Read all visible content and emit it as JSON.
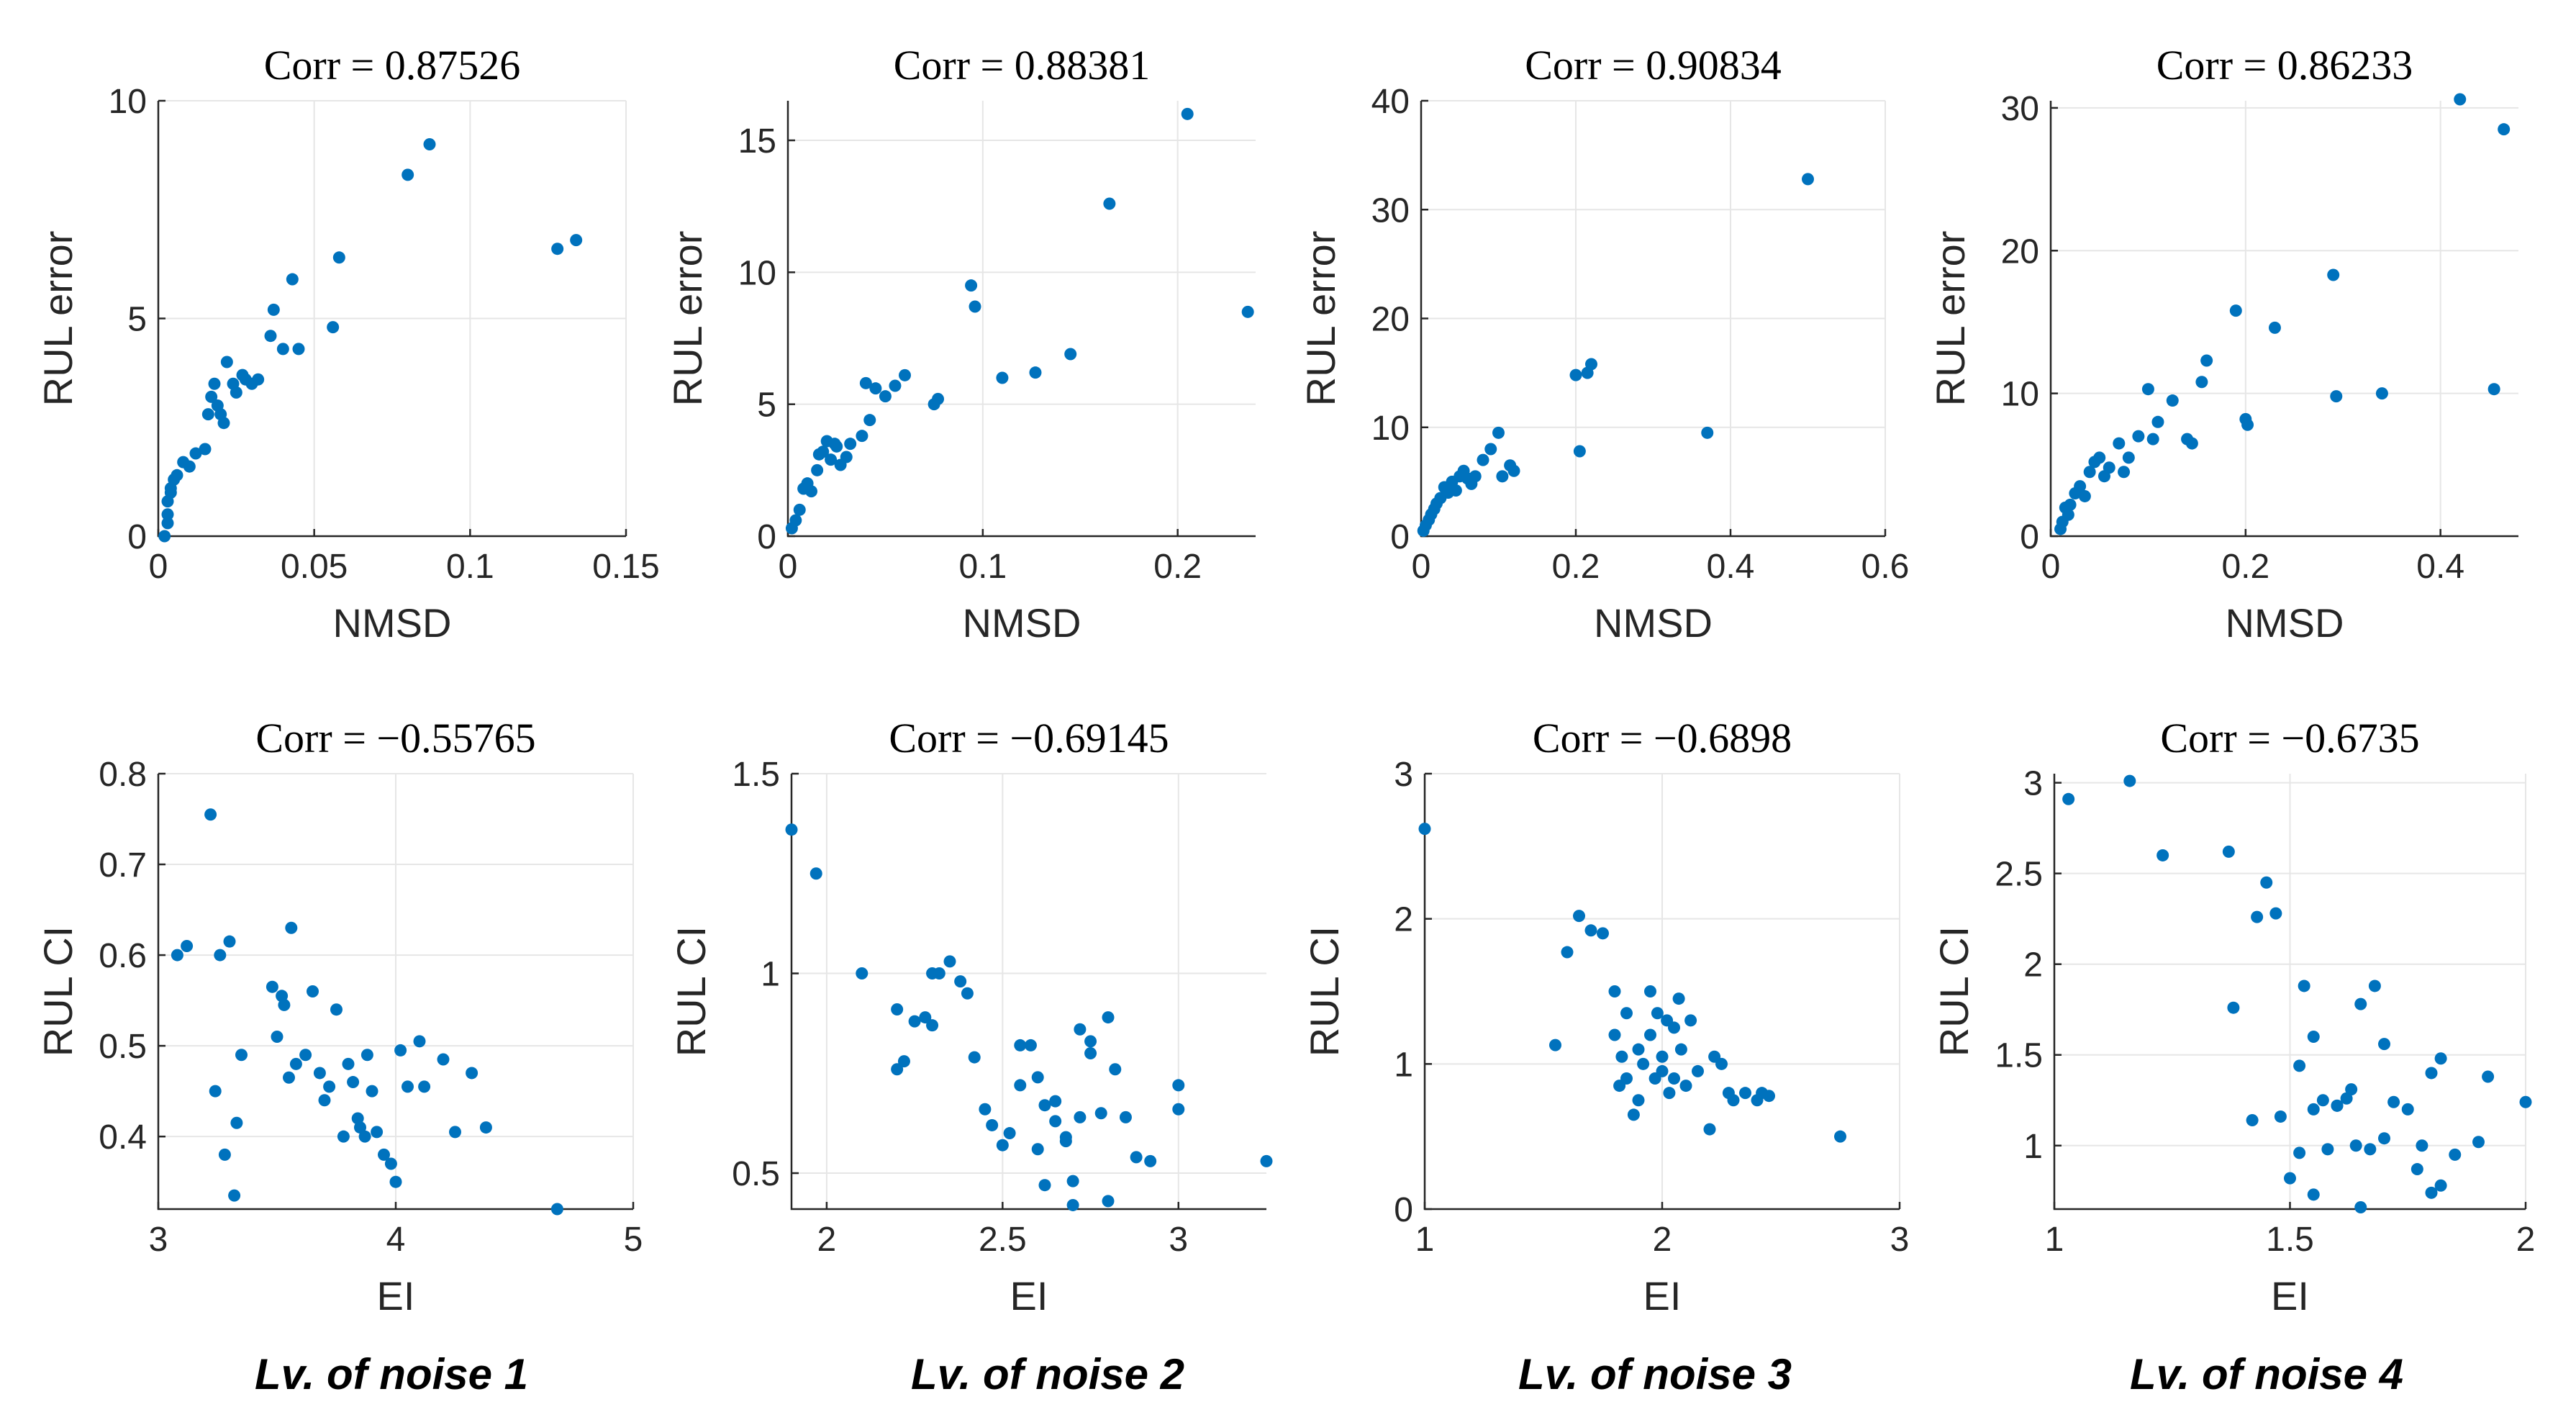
{
  "colors": {
    "marker": "#0072BD",
    "grid": "#e6e6e6",
    "axis": "#262626"
  },
  "captions": [
    "Lv. of noise 1",
    "Lv. of noise 2",
    "Lv. of noise 3",
    "Lv. of noise 4"
  ],
  "chart_data": [
    {
      "type": "scatter",
      "title": "Corr = 0.87526",
      "xlabel": "NMSD",
      "ylabel": "RUL error",
      "xlim": [
        0,
        0.15
      ],
      "ylim": [
        0,
        10
      ],
      "grid": true,
      "xticks": [
        0,
        0.05,
        0.1,
        0.15
      ],
      "xtick_labels": [
        "0",
        "0.05",
        "0.1",
        "0.15"
      ],
      "yticks": [
        0,
        5,
        10
      ],
      "ytick_labels": [
        "0",
        "5",
        "10"
      ],
      "x": [
        0.002,
        0.003,
        0.003,
        0.003,
        0.004,
        0.004,
        0.005,
        0.006,
        0.008,
        0.01,
        0.012,
        0.015,
        0.016,
        0.017,
        0.018,
        0.019,
        0.02,
        0.021,
        0.022,
        0.024,
        0.025,
        0.027,
        0.028,
        0.03,
        0.032,
        0.036,
        0.037,
        0.04,
        0.043,
        0.045,
        0.056,
        0.058,
        0.08,
        0.087,
        0.128,
        0.134
      ],
      "y": [
        0.0,
        0.3,
        0.5,
        0.8,
        1.0,
        1.1,
        1.3,
        1.4,
        1.7,
        1.6,
        1.9,
        2.0,
        2.8,
        3.2,
        3.5,
        3.0,
        2.8,
        2.6,
        4.0,
        3.5,
        3.3,
        3.7,
        3.6,
        3.5,
        3.6,
        4.6,
        5.2,
        4.3,
        5.9,
        4.3,
        4.8,
        6.4,
        8.3,
        9.0,
        6.6,
        6.8
      ]
    },
    {
      "type": "scatter",
      "title": "Corr = 0.88381",
      "xlabel": "NMSD",
      "ylabel": "RUL error",
      "xlim": [
        0,
        0.24
      ],
      "ylim": [
        0,
        16.5
      ],
      "grid": true,
      "xticks": [
        0,
        0.1,
        0.2
      ],
      "xtick_labels": [
        "0",
        "0.1",
        "0.2"
      ],
      "yticks": [
        0,
        5,
        10,
        15
      ],
      "ytick_labels": [
        "0",
        "5",
        "10",
        "15"
      ],
      "x": [
        0.002,
        0.004,
        0.006,
        0.008,
        0.01,
        0.012,
        0.015,
        0.016,
        0.018,
        0.02,
        0.022,
        0.024,
        0.025,
        0.027,
        0.03,
        0.032,
        0.038,
        0.04,
        0.042,
        0.045,
        0.05,
        0.055,
        0.06,
        0.075,
        0.077,
        0.094,
        0.096,
        0.11,
        0.127,
        0.145,
        0.165,
        0.205,
        0.236
      ],
      "y": [
        0.3,
        0.6,
        1.0,
        1.8,
        2.0,
        1.7,
        2.5,
        3.1,
        3.2,
        3.6,
        2.9,
        3.5,
        3.4,
        2.7,
        3.0,
        3.5,
        3.8,
        5.8,
        4.4,
        5.6,
        5.3,
        5.7,
        6.1,
        5.0,
        5.2,
        9.5,
        8.7,
        6.0,
        6.2,
        6.9,
        12.6,
        16.0,
        8.5
      ]
    },
    {
      "type": "scatter",
      "title": "Corr = 0.90834",
      "xlabel": "NMSD",
      "ylabel": "RUL error",
      "xlim": [
        0,
        0.6
      ],
      "ylim": [
        0,
        40
      ],
      "grid": true,
      "xticks": [
        0,
        0.2,
        0.4,
        0.6
      ],
      "xtick_labels": [
        "0",
        "0.2",
        "0.4",
        "0.6"
      ],
      "yticks": [
        0,
        10,
        20,
        30,
        40
      ],
      "ytick_labels": [
        "0",
        "10",
        "20",
        "30",
        "40"
      ],
      "x": [
        0.003,
        0.006,
        0.01,
        0.013,
        0.017,
        0.02,
        0.025,
        0.03,
        0.035,
        0.04,
        0.045,
        0.05,
        0.055,
        0.06,
        0.065,
        0.07,
        0.08,
        0.09,
        0.1,
        0.105,
        0.115,
        0.12,
        0.2,
        0.205,
        0.215,
        0.22,
        0.37,
        0.5
      ],
      "y": [
        0.5,
        1.0,
        1.5,
        2.0,
        2.5,
        3.0,
        3.5,
        4.5,
        4.0,
        5.0,
        4.2,
        5.5,
        6.0,
        5.3,
        4.8,
        5.5,
        7.0,
        8.0,
        9.5,
        5.5,
        6.5,
        6.0,
        14.8,
        7.8,
        15.0,
        15.8,
        9.5,
        32.8
      ]
    },
    {
      "type": "scatter",
      "title": "Corr = 0.86233",
      "xlabel": "NMSD",
      "ylabel": "RUL error",
      "xlim": [
        0,
        0.48
      ],
      "ylim": [
        0,
        30.5
      ],
      "grid": true,
      "xticks": [
        0,
        0.2,
        0.4
      ],
      "xtick_labels": [
        "0",
        "0.2",
        "0.4"
      ],
      "yticks": [
        0,
        10,
        20,
        30
      ],
      "ytick_labels": [
        "0",
        "10",
        "20",
        "30"
      ],
      "x": [
        0.01,
        0.012,
        0.015,
        0.018,
        0.02,
        0.025,
        0.03,
        0.035,
        0.04,
        0.045,
        0.05,
        0.055,
        0.06,
        0.07,
        0.075,
        0.08,
        0.09,
        0.1,
        0.105,
        0.11,
        0.125,
        0.14,
        0.145,
        0.155,
        0.16,
        0.19,
        0.2,
        0.202,
        0.23,
        0.29,
        0.293,
        0.34,
        0.42,
        0.455,
        0.465
      ],
      "y": [
        0.5,
        1.0,
        2.0,
        1.5,
        2.2,
        3.0,
        3.5,
        2.8,
        4.5,
        5.2,
        5.5,
        4.2,
        4.8,
        6.5,
        4.5,
        5.5,
        7.0,
        10.3,
        6.8,
        8.0,
        9.5,
        6.8,
        6.5,
        10.8,
        12.3,
        15.8,
        8.2,
        7.8,
        14.6,
        18.3,
        9.8,
        10.0,
        30.6,
        10.3,
        28.5
      ]
    },
    {
      "type": "scatter",
      "title": "Corr = −0.55765",
      "xlabel": "EI",
      "ylabel": "RUL CI",
      "xlim": [
        3,
        5
      ],
      "ylim": [
        0.32,
        0.8
      ],
      "grid": true,
      "xticks": [
        3,
        4,
        5
      ],
      "xtick_labels": [
        "3",
        "4",
        "5"
      ],
      "yticks": [
        0.4,
        0.5,
        0.6,
        0.7,
        0.8
      ],
      "ytick_labels": [
        "0.4",
        "0.5",
        "0.6",
        "0.7",
        "0.8"
      ],
      "x": [
        3.08,
        3.12,
        3.22,
        3.24,
        3.26,
        3.28,
        3.3,
        3.32,
        3.33,
        3.35,
        3.48,
        3.5,
        3.52,
        3.53,
        3.55,
        3.56,
        3.58,
        3.62,
        3.65,
        3.68,
        3.7,
        3.72,
        3.75,
        3.78,
        3.8,
        3.82,
        3.84,
        3.85,
        3.87,
        3.88,
        3.9,
        3.92,
        3.95,
        3.98,
        4.0,
        4.02,
        4.05,
        4.1,
        4.12,
        4.2,
        4.25,
        4.32,
        4.38,
        4.68
      ],
      "y": [
        0.6,
        0.61,
        0.755,
        0.45,
        0.6,
        0.38,
        0.615,
        0.335,
        0.415,
        0.49,
        0.565,
        0.51,
        0.555,
        0.545,
        0.465,
        0.63,
        0.48,
        0.49,
        0.56,
        0.47,
        0.44,
        0.455,
        0.54,
        0.4,
        0.48,
        0.46,
        0.42,
        0.41,
        0.4,
        0.49,
        0.45,
        0.405,
        0.38,
        0.37,
        0.35,
        0.495,
        0.455,
        0.505,
        0.455,
        0.485,
        0.405,
        0.47,
        0.41,
        0.32
      ]
    },
    {
      "type": "scatter",
      "title": "Corr = −0.69145",
      "xlabel": "EI",
      "ylabel": "RUL CI",
      "xlim": [
        1.9,
        3.25
      ],
      "ylim": [
        0.41,
        1.5
      ],
      "grid": true,
      "xticks": [
        2,
        2.5,
        3
      ],
      "xtick_labels": [
        "2",
        "2.5",
        "3"
      ],
      "yticks": [
        0.5,
        1,
        1.5
      ],
      "ytick_labels": [
        "0.5",
        "1",
        "1.5"
      ],
      "x": [
        1.9,
        1.97,
        2.1,
        2.2,
        2.2,
        2.22,
        2.25,
        2.28,
        2.3,
        2.3,
        2.32,
        2.35,
        2.38,
        2.4,
        2.42,
        2.45,
        2.47,
        2.5,
        2.52,
        2.55,
        2.55,
        2.58,
        2.6,
        2.6,
        2.62,
        2.62,
        2.65,
        2.65,
        2.68,
        2.68,
        2.7,
        2.7,
        2.72,
        2.72,
        2.75,
        2.75,
        2.78,
        2.8,
        2.8,
        2.82,
        2.85,
        2.88,
        2.92,
        3.0,
        3.0,
        3.25
      ],
      "y": [
        1.36,
        1.25,
        1.0,
        0.91,
        0.76,
        0.78,
        0.88,
        0.89,
        1.0,
        0.87,
        1.0,
        1.03,
        0.98,
        0.95,
        0.79,
        0.66,
        0.62,
        0.57,
        0.6,
        0.82,
        0.72,
        0.82,
        0.56,
        0.74,
        0.67,
        0.47,
        0.63,
        0.68,
        0.58,
        0.59,
        0.42,
        0.48,
        0.64,
        0.86,
        0.8,
        0.83,
        0.65,
        0.43,
        0.89,
        0.76,
        0.64,
        0.54,
        0.53,
        0.72,
        0.66,
        0.53
      ]
    },
    {
      "type": "scatter",
      "title": "Corr = −0.6898",
      "xlabel": "EI",
      "ylabel": "RUL CI",
      "xlim": [
        1,
        3
      ],
      "ylim": [
        0,
        3
      ],
      "grid": true,
      "xticks": [
        1,
        2,
        3
      ],
      "xtick_labels": [
        "1",
        "2",
        "3"
      ],
      "yticks": [
        0,
        1,
        2,
        3
      ],
      "ytick_labels": [
        "0",
        "1",
        "2",
        "3"
      ],
      "x": [
        1.0,
        1.55,
        1.6,
        1.65,
        1.7,
        1.75,
        1.8,
        1.8,
        1.82,
        1.83,
        1.85,
        1.85,
        1.88,
        1.9,
        1.9,
        1.92,
        1.95,
        1.95,
        1.97,
        1.98,
        2.0,
        2.0,
        2.02,
        2.03,
        2.05,
        2.05,
        2.07,
        2.08,
        2.1,
        2.12,
        2.15,
        2.2,
        2.22,
        2.25,
        2.28,
        2.3,
        2.35,
        2.4,
        2.42,
        2.45,
        2.75
      ],
      "y": [
        2.62,
        1.13,
        1.77,
        2.02,
        1.92,
        1.9,
        1.5,
        1.2,
        0.85,
        1.05,
        1.35,
        0.9,
        0.65,
        1.1,
        0.75,
        1.0,
        1.5,
        1.2,
        0.9,
        1.35,
        0.95,
        1.05,
        1.3,
        0.8,
        1.25,
        0.9,
        1.45,
        1.1,
        0.85,
        1.3,
        0.95,
        0.55,
        1.05,
        1.0,
        0.8,
        0.75,
        0.8,
        0.75,
        0.8,
        0.78,
        0.5
      ]
    },
    {
      "type": "scatter",
      "title": "Corr = −0.6735",
      "xlabel": "EI",
      "ylabel": "RUL CI",
      "xlim": [
        1,
        2
      ],
      "ylim": [
        0.65,
        3.05
      ],
      "grid": true,
      "xticks": [
        1,
        1.5,
        2
      ],
      "xtick_labels": [
        "1",
        "1.5",
        "2"
      ],
      "yticks": [
        1,
        1.5,
        2,
        2.5,
        3
      ],
      "ytick_labels": [
        "1",
        "1.5",
        "2",
        "2.5",
        "3"
      ],
      "x": [
        1.03,
        1.16,
        1.23,
        1.37,
        1.38,
        1.42,
        1.43,
        1.45,
        1.47,
        1.48,
        1.5,
        1.52,
        1.52,
        1.53,
        1.55,
        1.55,
        1.55,
        1.57,
        1.58,
        1.6,
        1.6,
        1.62,
        1.63,
        1.64,
        1.65,
        1.65,
        1.67,
        1.68,
        1.7,
        1.7,
        1.72,
        1.75,
        1.77,
        1.78,
        1.8,
        1.8,
        1.82,
        1.82,
        1.85,
        1.9,
        1.92,
        2.0
      ],
      "y": [
        2.91,
        3.01,
        2.6,
        2.62,
        1.76,
        1.14,
        2.26,
        2.45,
        2.28,
        1.16,
        0.82,
        1.44,
        0.96,
        1.88,
        0.73,
        1.2,
        1.6,
        1.25,
        0.98,
        1.22,
        1.22,
        1.26,
        1.31,
        1.0,
        1.78,
        0.66,
        0.98,
        1.88,
        1.56,
        1.04,
        1.24,
        1.2,
        0.87,
        1.0,
        0.74,
        1.4,
        1.48,
        0.78,
        0.95,
        1.02,
        1.38,
        1.24
      ]
    }
  ]
}
